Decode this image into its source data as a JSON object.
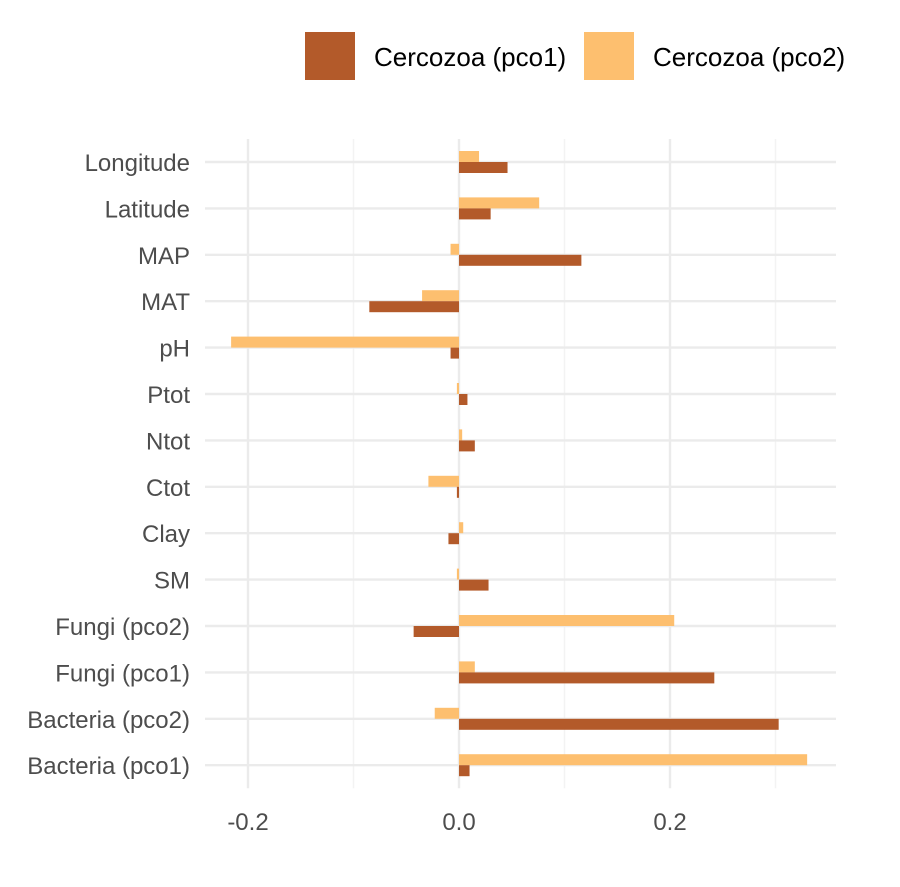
{
  "chart_data": {
    "type": "bar",
    "orientation": "horizontal",
    "categories": [
      "Longitude",
      "Latitude",
      "MAP",
      "MAT",
      "pH",
      "Ptot",
      "Ntot",
      "Ctot",
      "Clay",
      "SM",
      "Fungi (pco2)",
      "Fungi (pco1)",
      "Bacteria (pco2)",
      "Bacteria (pco1)"
    ],
    "series": [
      {
        "name": "Cercozoa (pco1)",
        "color": "#b35a2a",
        "values": [
          0.046,
          0.03,
          0.116,
          -0.085,
          -0.008,
          0.008,
          0.015,
          -0.002,
          -0.01,
          0.028,
          -0.043,
          0.242,
          0.303,
          0.01
        ]
      },
      {
        "name": "Cercozoa (pco2)",
        "color": "#fdbf6f",
        "values": [
          0.019,
          0.076,
          -0.008,
          -0.035,
          -0.216,
          -0.002,
          0.003,
          -0.029,
          0.004,
          -0.002,
          0.204,
          0.015,
          -0.023,
          0.33
        ]
      }
    ],
    "xticks": [
      "-0.2",
      "0.0",
      "0.2"
    ],
    "xtick_values": [
      -0.2,
      0.0,
      0.2
    ],
    "xlim": [
      -0.24,
      0.357
    ],
    "xlabel": "",
    "ylabel": "",
    "title": "",
    "grid": true,
    "legend_position": "top-right"
  }
}
